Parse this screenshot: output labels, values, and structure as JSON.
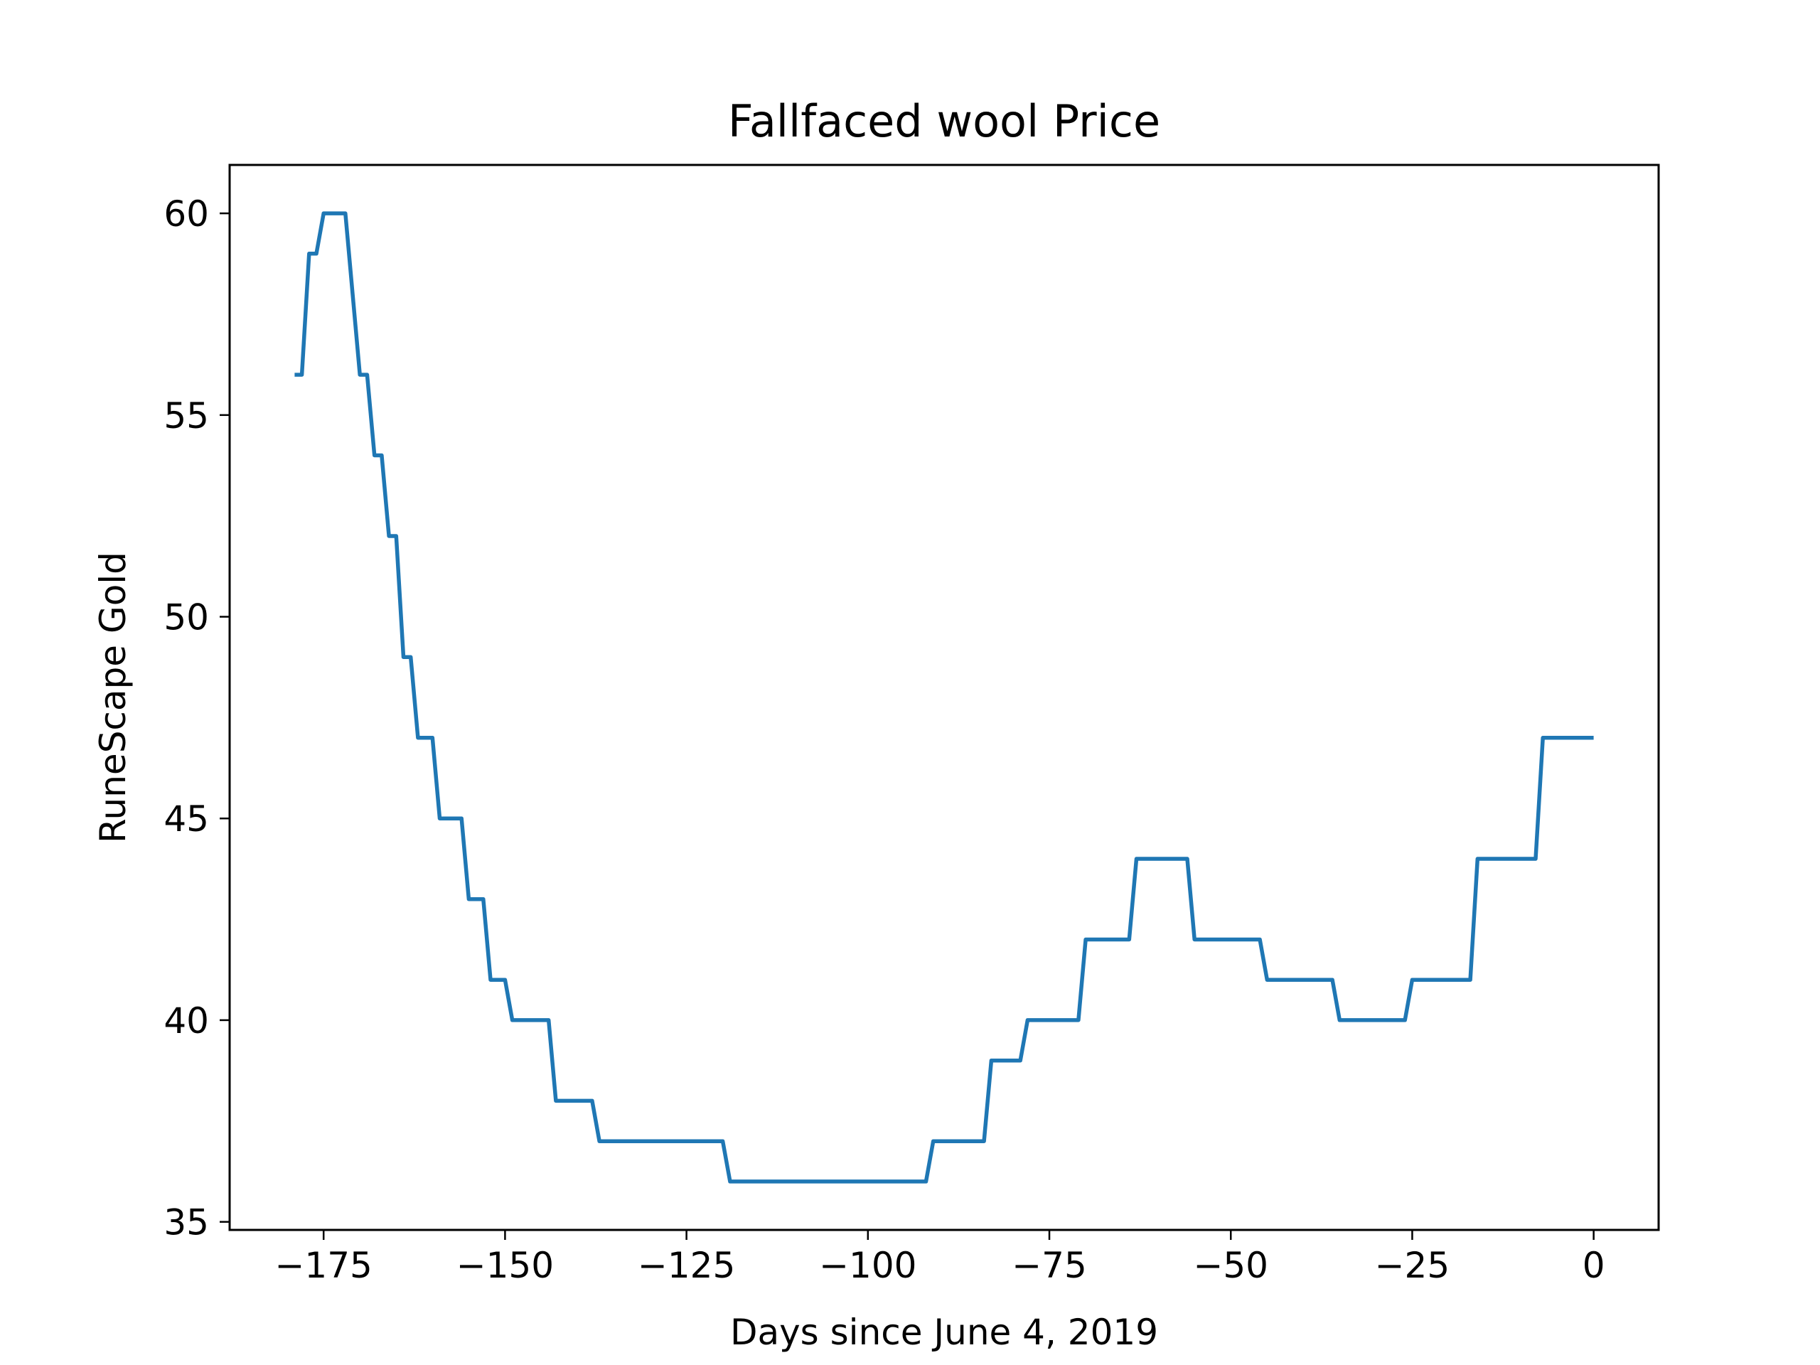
{
  "chart_data": {
    "type": "line",
    "title": "Fallfaced wool Price",
    "xlabel": "Days since June 4, 2019",
    "ylabel": "RuneScape Gold",
    "xlim": [
      -187.95,
      8.95
    ],
    "ylim": [
      34.8,
      61.2
    ],
    "xticks": [
      -175,
      -150,
      -125,
      -100,
      -75,
      -50,
      -25,
      0
    ],
    "xtick_labels": [
      "−175",
      "−150",
      "−125",
      "−100",
      "−75",
      "−50",
      "−25",
      "0"
    ],
    "yticks": [
      35,
      40,
      45,
      50,
      55,
      60
    ],
    "ytick_labels": [
      "35",
      "40",
      "45",
      "50",
      "55",
      "60"
    ],
    "grid": false,
    "legend": "none",
    "series_color": "#1f77b4",
    "series": [
      {
        "x": [
          -179,
          -178,
          -177,
          -176,
          -175,
          -174,
          -173,
          -172,
          -171,
          -170,
          -169,
          -168,
          -167,
          -166,
          -165,
          -164,
          -163,
          -162,
          -161,
          -160,
          -159,
          -158,
          -157,
          -156,
          -155,
          -154,
          -153,
          -152,
          -151,
          -150,
          -149,
          -148,
          -147,
          -146,
          -145,
          -144,
          -143,
          -142,
          -141,
          -140,
          -139,
          -138,
          -137,
          -136,
          -135,
          -134,
          -133,
          -132,
          -131,
          -130,
          -129,
          -128,
          -127,
          -126,
          -125,
          -124,
          -123,
          -122,
          -121,
          -120,
          -119,
          -118,
          -117,
          -116,
          -115,
          -114,
          -113,
          -112,
          -111,
          -110,
          -109,
          -108,
          -107,
          -106,
          -105,
          -104,
          -103,
          -102,
          -101,
          -100,
          -99,
          -98,
          -97,
          -96,
          -95,
          -94,
          -93,
          -92,
          -91,
          -90,
          -89,
          -88,
          -87,
          -86,
          -85,
          -84,
          -83,
          -82,
          -81,
          -80,
          -79,
          -78,
          -77,
          -76,
          -75,
          -74,
          -73,
          -72,
          -71,
          -70,
          -69,
          -68,
          -67,
          -66,
          -65,
          -64,
          -63,
          -62,
          -61,
          -60,
          -59,
          -58,
          -57,
          -56,
          -55,
          -54,
          -53,
          -52,
          -51,
          -50,
          -49,
          -48,
          -47,
          -46,
          -45,
          -44,
          -43,
          -42,
          -41,
          -40,
          -39,
          -38,
          -37,
          -36,
          -35,
          -34,
          -33,
          -32,
          -31,
          -30,
          -29,
          -28,
          -27,
          -26,
          -25,
          -24,
          -23,
          -22,
          -21,
          -20,
          -19,
          -18,
          -17,
          -16,
          -15,
          -14,
          -13,
          -12,
          -11,
          -10,
          -9,
          -8,
          -7,
          -6,
          -5,
          -4,
          -3,
          -2,
          -1,
          0
        ],
        "y": [
          56,
          56,
          59,
          59,
          60,
          60,
          60,
          60,
          58,
          56,
          56,
          54,
          54,
          52,
          52,
          49,
          49,
          47,
          47,
          47,
          45,
          45,
          45,
          45,
          43,
          43,
          43,
          41,
          41,
          41,
          40,
          40,
          40,
          40,
          40,
          40,
          38,
          38,
          38,
          38,
          38,
          38,
          37,
          37,
          37,
          37,
          37,
          37,
          37,
          37,
          37,
          37,
          37,
          37,
          37,
          37,
          37,
          37,
          37,
          37,
          36,
          36,
          36,
          36,
          36,
          36,
          36,
          36,
          36,
          36,
          36,
          36,
          36,
          36,
          36,
          36,
          36,
          36,
          36,
          36,
          36,
          36,
          36,
          36,
          36,
          36,
          36,
          36,
          37,
          37,
          37,
          37,
          37,
          37,
          37,
          37,
          39,
          39,
          39,
          39,
          39,
          40,
          40,
          40,
          40,
          40,
          40,
          40,
          40,
          42,
          42,
          42,
          42,
          42,
          42,
          42,
          44,
          44,
          44,
          44,
          44,
          44,
          44,
          44,
          42,
          42,
          42,
          42,
          42,
          42,
          42,
          42,
          42,
          42,
          41,
          41,
          41,
          41,
          41,
          41,
          41,
          41,
          41,
          41,
          40,
          40,
          40,
          40,
          40,
          40,
          40,
          40,
          40,
          40,
          41,
          41,
          41,
          41,
          41,
          41,
          41,
          41,
          41,
          44,
          44,
          44,
          44,
          44,
          44,
          44,
          44,
          44,
          47,
          47,
          47,
          47,
          47,
          47,
          47,
          47
        ]
      }
    ]
  }
}
